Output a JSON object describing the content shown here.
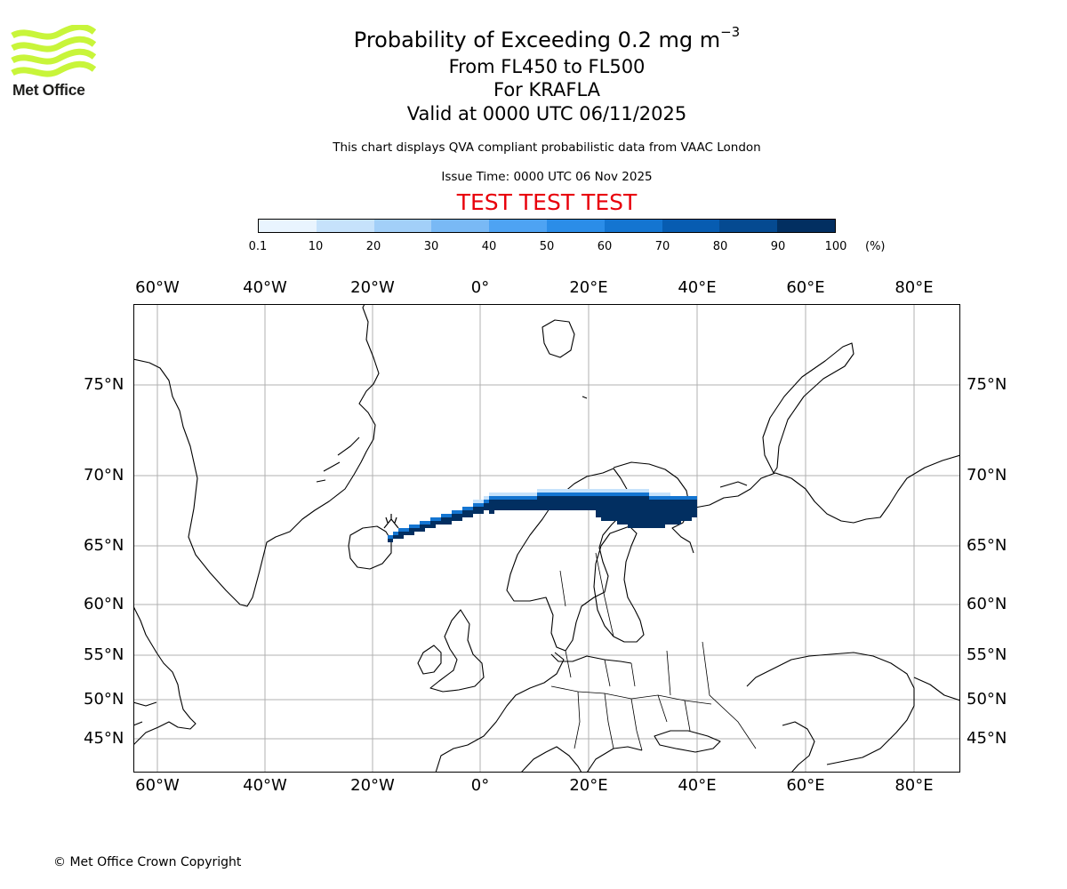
{
  "branding": {
    "logo_text": "Met Office",
    "logo_color": "#c8f53a",
    "logo_icon": "met-office-wave-logo"
  },
  "header": {
    "title_prefix": "Probability of Exceeding 0.2 mg m",
    "title_exponent": "−3",
    "flight_levels": "From FL450 to FL500",
    "volcano": "For KRAFLA",
    "valid_time": "Valid at 0000 UTC 06/11/2025",
    "description": "This chart displays QVA compliant probabilistic data from VAAC London",
    "issue_time": "Issue Time: 0000 UTC 06 Nov 2025",
    "test_banner": "TEST TEST TEST",
    "test_banner_color": "#e8000b"
  },
  "colorbar": {
    "ticks": [
      "0.1",
      "10",
      "20",
      "30",
      "40",
      "50",
      "60",
      "70",
      "80",
      "90",
      "100"
    ],
    "unit": "(%)",
    "colors": [
      "#e9f4fe",
      "#c6e2fb",
      "#a2cff8",
      "#79b9f5",
      "#4ea3f3",
      "#2b8de8",
      "#1475d1",
      "#075cb1",
      "#054a91",
      "#022f61"
    ]
  },
  "map": {
    "lon_labels": [
      "60°W",
      "40°W",
      "20°W",
      "0°",
      "20°E",
      "40°E",
      "60°E",
      "80°E"
    ],
    "lat_labels": [
      "75°N",
      "70°N",
      "65°N",
      "60°N",
      "55°N",
      "50°N",
      "45°N"
    ],
    "plume_color": "#022f61",
    "plume_edge_color": "#1475d1",
    "plume_fringe_color": "#c6e2fb"
  },
  "footer": {
    "copyright": "© Met Office Crown Copyright"
  }
}
